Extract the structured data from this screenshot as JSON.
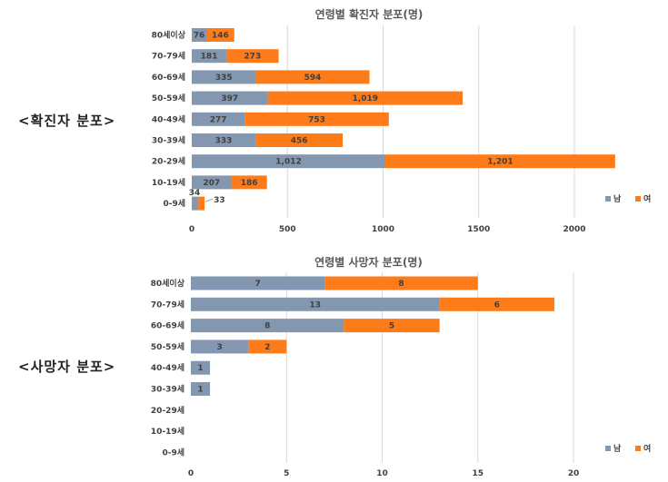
{
  "side_labels": {
    "cases": "<확진자 분포>",
    "deaths": "<사망자 분포>"
  },
  "colors": {
    "male": "#8497b0",
    "female": "#fd7c19",
    "grid": "#d9d9d9"
  },
  "chart_data": [
    {
      "type": "bar",
      "orientation": "horizontal",
      "stacked": true,
      "title": "연령별 확진자 분포(명)",
      "categories": [
        "80세이상",
        "70-79세",
        "60-69세",
        "50-59세",
        "40-49세",
        "30-39세",
        "20-29세",
        "10-19세",
        "0-9세"
      ],
      "series": [
        {
          "name": "남",
          "values": [
            76,
            181,
            335,
            397,
            277,
            333,
            1012,
            207,
            34
          ],
          "labels": [
            "76",
            "181",
            "335",
            "397",
            "277",
            "333",
            "1,012",
            "207",
            "34"
          ]
        },
        {
          "name": "여",
          "values": [
            146,
            273,
            594,
            1019,
            753,
            456,
            1201,
            186,
            33
          ],
          "labels": [
            "146",
            "273",
            "594",
            "1,019",
            "753",
            "456",
            "1,201",
            "186",
            "33"
          ]
        }
      ],
      "xlim": [
        0,
        2250
      ],
      "ticks": [
        0,
        500,
        1000,
        1500,
        2000
      ],
      "grid": true,
      "legend": "bottom-right"
    },
    {
      "type": "bar",
      "orientation": "horizontal",
      "stacked": true,
      "title": "연령별 사망자 분포(명)",
      "categories": [
        "80세이상",
        "70-79세",
        "60-69세",
        "50-59세",
        "40-49세",
        "30-39세",
        "20-29세",
        "10-19세",
        "0-9세"
      ],
      "series": [
        {
          "name": "남",
          "values": [
            7,
            13,
            8,
            3,
            1,
            1,
            0,
            0,
            0
          ],
          "labels": [
            "7",
            "13",
            "8",
            "3",
            "1",
            "1",
            "",
            "",
            ""
          ]
        },
        {
          "name": "여",
          "values": [
            8,
            6,
            5,
            2,
            0,
            0,
            0,
            0,
            0
          ],
          "labels": [
            "8",
            "6",
            "5",
            "2",
            "",
            "",
            "",
            "",
            ""
          ]
        }
      ],
      "xlim": [
        0,
        22
      ],
      "ticks": [
        0,
        5,
        10,
        15,
        20
      ],
      "grid": true,
      "legend": "bottom-right"
    }
  ]
}
